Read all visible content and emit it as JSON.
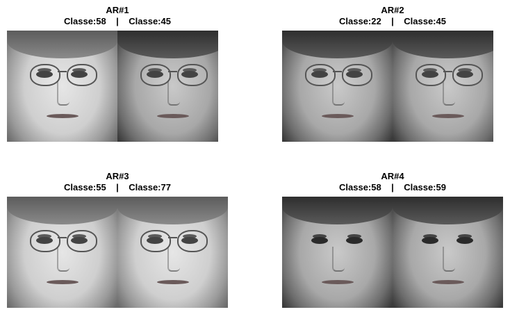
{
  "panels": [
    {
      "title": "AR#1",
      "classes": "Classe:58    |    Classe:45"
    },
    {
      "title": "AR#2",
      "classes": "Classe:22    |    Classe:45"
    },
    {
      "title": "AR#3",
      "classes": "Classe:55    |    Classe:77"
    },
    {
      "title": "AR#4",
      "classes": "Classe:58    |    Classe:59"
    }
  ]
}
